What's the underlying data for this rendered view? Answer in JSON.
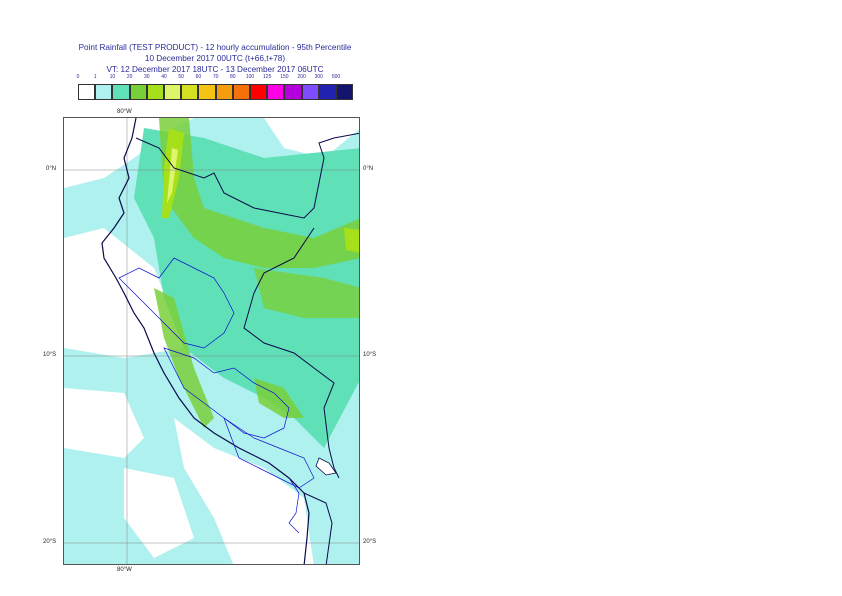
{
  "header": {
    "line1": "Point Rainfall (TEST PRODUCT) - 12 hourly accumulation - 95th Percentile",
    "line2": "10 December 2017 00UTC (t+66,t+78)",
    "line3": "VT: 12 December 2017 18UTC - 13 December 2017 06UTC"
  },
  "legend": {
    "labels": [
      "0",
      "1",
      "10",
      "20",
      "30",
      "40",
      "50",
      "60",
      "70",
      "80",
      "100",
      "125",
      "150",
      "200",
      "300",
      "500"
    ],
    "colors": [
      "#ffffff",
      "#aef1ee",
      "#5fe0b6",
      "#79cf3a",
      "#a5e01a",
      "#dcf56a",
      "#d4e020",
      "#f4c313",
      "#f59b0e",
      "#f5700a",
      "#ff0000",
      "#ff00e6",
      "#b400dc",
      "#7f4cff",
      "#2222b0",
      "#14146e"
    ]
  },
  "axes": {
    "top_lon": "80°W",
    "bottom_lon": "80°W",
    "lat_left": [
      "0°N",
      "10°S",
      "20°S"
    ],
    "lat_right": [
      "0°N",
      "10°S",
      "20°S"
    ]
  },
  "map_colors": {
    "ocean_light": "#aef1ee",
    "rain_mid": "#5fe0b6",
    "rain_green": "#79cf3a",
    "rain_lime": "#a5e01a",
    "rain_yellow": "#dcf56a",
    "coast": "#0a0a4a",
    "border": "#1010d0"
  }
}
